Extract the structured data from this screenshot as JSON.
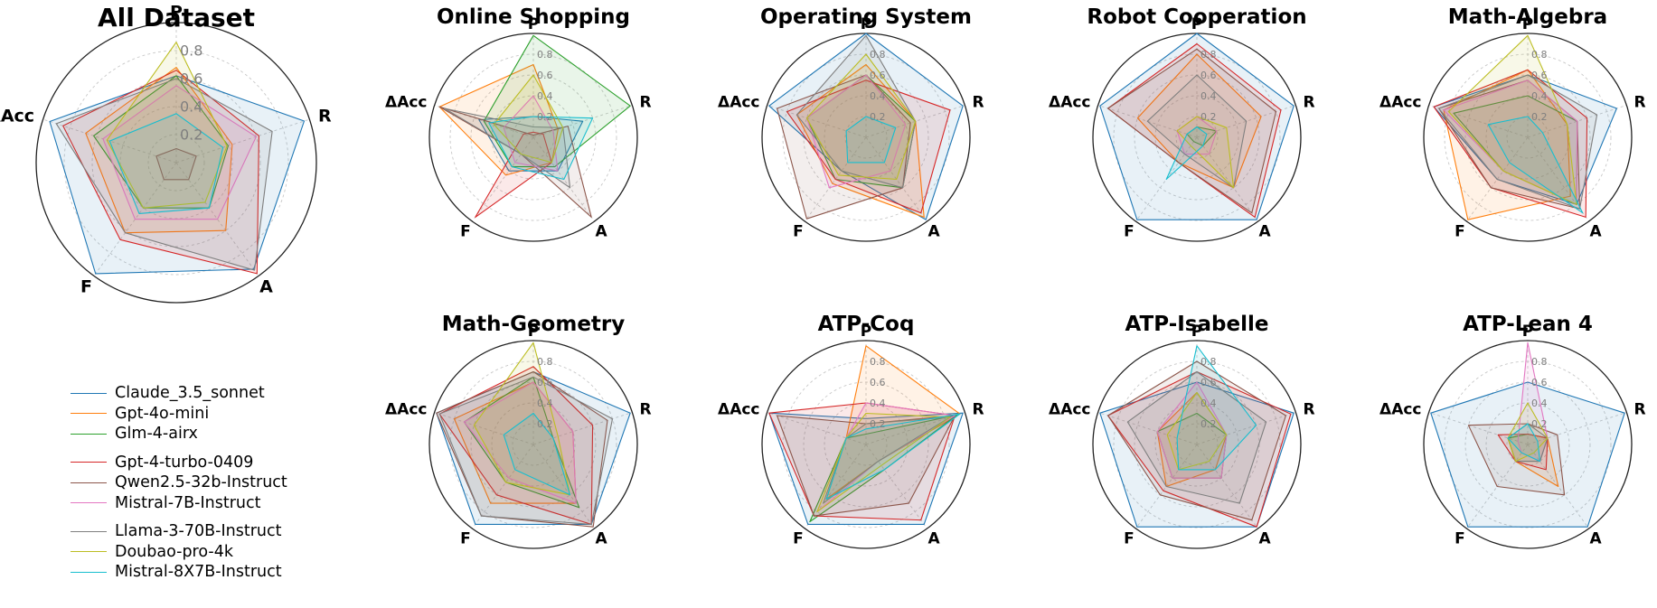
{
  "chart_data": {
    "type": "radar",
    "axes": [
      "P",
      "R",
      "A",
      "F",
      "ΔAcc"
    ],
    "range": [
      0,
      1
    ],
    "grid": true,
    "legend_placement": "bottom-left",
    "series_names": [
      "Claude_3.5_sonnet",
      "Gpt-4o-mini",
      "Glm-4-airx",
      "Gpt-4-turbo-0409",
      "Qwen2.5-32b-Instruct",
      "Mistral-7B-Instruct",
      "Llama-3-70B-Instruct",
      "Doubao-pro-4k",
      "Mistral-8X7B-Instruct"
    ],
    "colors": [
      "#1f77b4",
      "#ff7f0e",
      "#2ca02c",
      "#d62728",
      "#8c564b",
      "#e377c2",
      "#7f7f7f",
      "#bcbd22",
      "#17becf"
    ],
    "legend_groups": [
      [
        0,
        1,
        2
      ],
      [
        3,
        4,
        5
      ],
      [
        6,
        7,
        8
      ]
    ],
    "panels": [
      {
        "title": "All Dataset",
        "ticks": [
          "0.2",
          "0.4",
          "0.6",
          "0.8"
        ],
        "values": [
          [
            0.62,
            0.96,
            0.94,
            0.98,
            0.95
          ],
          [
            0.68,
            0.42,
            0.6,
            0.62,
            0.68
          ],
          [
            0.62,
            0.39,
            0.4,
            0.4,
            0.62
          ],
          [
            0.66,
            0.62,
            0.98,
            0.68,
            0.85
          ],
          [
            0.1,
            0.15,
            0.15,
            0.15,
            0.15
          ],
          [
            0.55,
            0.6,
            0.5,
            0.5,
            0.55
          ],
          [
            0.6,
            0.72,
            0.95,
            0.62,
            0.9
          ],
          [
            0.86,
            0.38,
            0.35,
            0.4,
            0.52
          ],
          [
            0.35,
            0.35,
            0.4,
            0.45,
            0.5
          ]
        ]
      },
      {
        "title": "Online Shopping",
        "ticks": [
          "0.2",
          "0.4",
          "0.6",
          "0.8"
        ],
        "values": [
          [
            0.2,
            0.5,
            0.4,
            0.4,
            0.55
          ],
          [
            0.7,
            0.25,
            0.3,
            0.45,
            0.95
          ],
          [
            0.98,
            0.98,
            0.35,
            0.35,
            0.5
          ],
          [
            0.05,
            0.1,
            0.3,
            0.95,
            0.1
          ],
          [
            0.02,
            0.35,
            0.95,
            0.2,
            0.95
          ],
          [
            0.4,
            0.2,
            0.4,
            0.3,
            0.3
          ],
          [
            0.1,
            0.3,
            0.6,
            0.2,
            0.9
          ],
          [
            0.6,
            0.3,
            0.3,
            0.2,
            0.4
          ],
          [
            0.2,
            0.6,
            0.5,
            0.35,
            0.45
          ]
        ]
      },
      {
        "title": "Operating System",
        "ticks": [
          "0.2",
          "0.4",
          "0.6",
          "0.8"
        ],
        "values": [
          [
            1.0,
            0.98,
            0.98,
            0.4,
            0.98
          ],
          [
            0.7,
            0.5,
            0.95,
            0.55,
            0.7
          ],
          [
            0.6,
            0.5,
            0.6,
            0.5,
            0.6
          ],
          [
            0.55,
            0.85,
            0.9,
            0.5,
            0.8
          ],
          [
            0.6,
            0.45,
            0.6,
            0.97,
            0.9
          ],
          [
            0.6,
            0.4,
            0.4,
            0.6,
            0.6
          ],
          [
            0.98,
            0.5,
            0.6,
            0.4,
            0.7
          ],
          [
            0.8,
            0.5,
            0.5,
            0.45,
            0.6
          ],
          [
            0.2,
            0.3,
            0.3,
            0.3,
            0.2
          ]
        ]
      },
      {
        "title": "Robot Cooperation",
        "ticks": [
          "0.2",
          "0.4",
          "0.6",
          "0.8"
        ],
        "values": [
          [
            1.0,
            0.98,
            0.98,
            0.98,
            0.98
          ],
          [
            0.8,
            0.65,
            0.6,
            0.3,
            0.6
          ],
          [
            0.1,
            0.2,
            0.1,
            0.05,
            0.1
          ],
          [
            0.9,
            0.85,
            0.95,
            0.3,
            0.9
          ],
          [
            0.85,
            0.8,
            0.9,
            0.3,
            0.9
          ],
          [
            0.2,
            0.2,
            0.2,
            0.2,
            0.2
          ],
          [
            0.6,
            0.5,
            0.6,
            0.2,
            0.5
          ],
          [
            0.2,
            0.3,
            0.6,
            0.1,
            0.2
          ],
          [
            0.1,
            0.1,
            0.1,
            0.5,
            0.1
          ]
        ]
      },
      {
        "title": "Math-Algebra",
        "ticks": [
          "0.2",
          "0.4",
          "0.6",
          "0.8"
        ],
        "values": [
          [
            0.6,
            0.9,
            0.8,
            0.5,
            0.95
          ],
          [
            0.65,
            0.4,
            0.7,
            0.98,
            0.85
          ],
          [
            0.4,
            0.5,
            0.8,
            0.4,
            0.75
          ],
          [
            0.65,
            0.6,
            0.95,
            0.6,
            0.95
          ],
          [
            0.55,
            0.5,
            0.85,
            0.6,
            0.9
          ],
          [
            0.55,
            0.5,
            0.8,
            0.4,
            0.85
          ],
          [
            0.6,
            0.7,
            0.85,
            0.5,
            0.9
          ],
          [
            0.98,
            0.4,
            0.8,
            0.4,
            0.8
          ],
          [
            0.2,
            0.15,
            0.9,
            0.3,
            0.4
          ]
        ]
      },
      {
        "title": "Math-Geometry",
        "ticks": [
          "0.2",
          "0.4",
          "0.6",
          "0.8"
        ],
        "values": [
          [
            0.7,
            0.98,
            0.95,
            0.95,
            0.98
          ],
          [
            0.6,
            0.4,
            0.7,
            0.7,
            0.8
          ],
          [
            0.65,
            0.2,
            0.75,
            0.45,
            0.7
          ],
          [
            0.75,
            0.6,
            0.95,
            0.6,
            0.95
          ],
          [
            0.7,
            0.75,
            0.98,
            0.85,
            0.98
          ],
          [
            0.6,
            0.4,
            0.7,
            0.4,
            0.7
          ],
          [
            0.65,
            0.8,
            0.95,
            0.85,
            0.95
          ],
          [
            0.98,
            0.25,
            0.6,
            0.45,
            0.6
          ],
          [
            0.3,
            0.2,
            0.6,
            0.3,
            0.3
          ]
        ]
      },
      {
        "title": "ATP-Coq",
        "ticks": [
          "0.2",
          "0.4",
          "0.6",
          "0.8"
        ],
        "values": [
          [
            0.25,
            0.98,
            0.95,
            0.95,
            0.98
          ],
          [
            0.95,
            0.95,
            0.2,
            0.65,
            0.2
          ],
          [
            0.1,
            0.92,
            0.3,
            0.92,
            0.2
          ],
          [
            0.4,
            0.9,
            0.9,
            0.85,
            0.98
          ],
          [
            0.2,
            0.9,
            0.7,
            0.85,
            0.9
          ],
          [
            0.4,
            0.9,
            0.2,
            0.8,
            0.2
          ],
          [
            0.2,
            0.85,
            0.2,
            0.7,
            0.2
          ],
          [
            0.3,
            0.85,
            0.25,
            0.8,
            0.2
          ],
          [
            0.15,
            0.95,
            0.3,
            0.65,
            0.2
          ]
        ]
      },
      {
        "title": "ATP-Isabelle",
        "ticks": [
          "0.2",
          "0.4",
          "0.6",
          "0.8"
        ],
        "values": [
          [
            0.6,
            0.98,
            0.98,
            0.98,
            0.98
          ],
          [
            0.5,
            0.3,
            0.3,
            0.5,
            0.4
          ],
          [
            0.3,
            0.3,
            0.4,
            0.4,
            0.4
          ],
          [
            0.7,
            0.95,
            0.98,
            0.55,
            0.9
          ],
          [
            0.8,
            0.9,
            0.9,
            0.6,
            0.9
          ],
          [
            0.6,
            0.3,
            0.4,
            0.4,
            0.4
          ],
          [
            0.7,
            0.7,
            0.7,
            0.5,
            0.7
          ],
          [
            0.5,
            0.3,
            0.2,
            0.3,
            0.3
          ],
          [
            0.95,
            0.6,
            0.3,
            0.3,
            0.2
          ]
        ]
      },
      {
        "title": "ATP-Lean 4",
        "ticks": [
          "0.2",
          "0.4",
          "0.6",
          "0.8"
        ],
        "values": [
          [
            0.6,
            0.98,
            0.98,
            0.98,
            0.98
          ],
          [
            0.1,
            0.2,
            0.5,
            0.2,
            0.2
          ],
          [
            0.1,
            0.2,
            0.2,
            0.2,
            0.2
          ],
          [
            0.1,
            0.2,
            0.3,
            0.2,
            0.3
          ],
          [
            0.2,
            0.3,
            0.6,
            0.5,
            0.6
          ],
          [
            0.98,
            0.2,
            0.2,
            0.1,
            0.1
          ],
          [
            0.2,
            0.2,
            0.2,
            0.2,
            0.2
          ],
          [
            0.4,
            0.2,
            0.1,
            0.2,
            0.2
          ],
          [
            0.2,
            0.1,
            0.2,
            0.1,
            0.2
          ]
        ]
      }
    ]
  }
}
